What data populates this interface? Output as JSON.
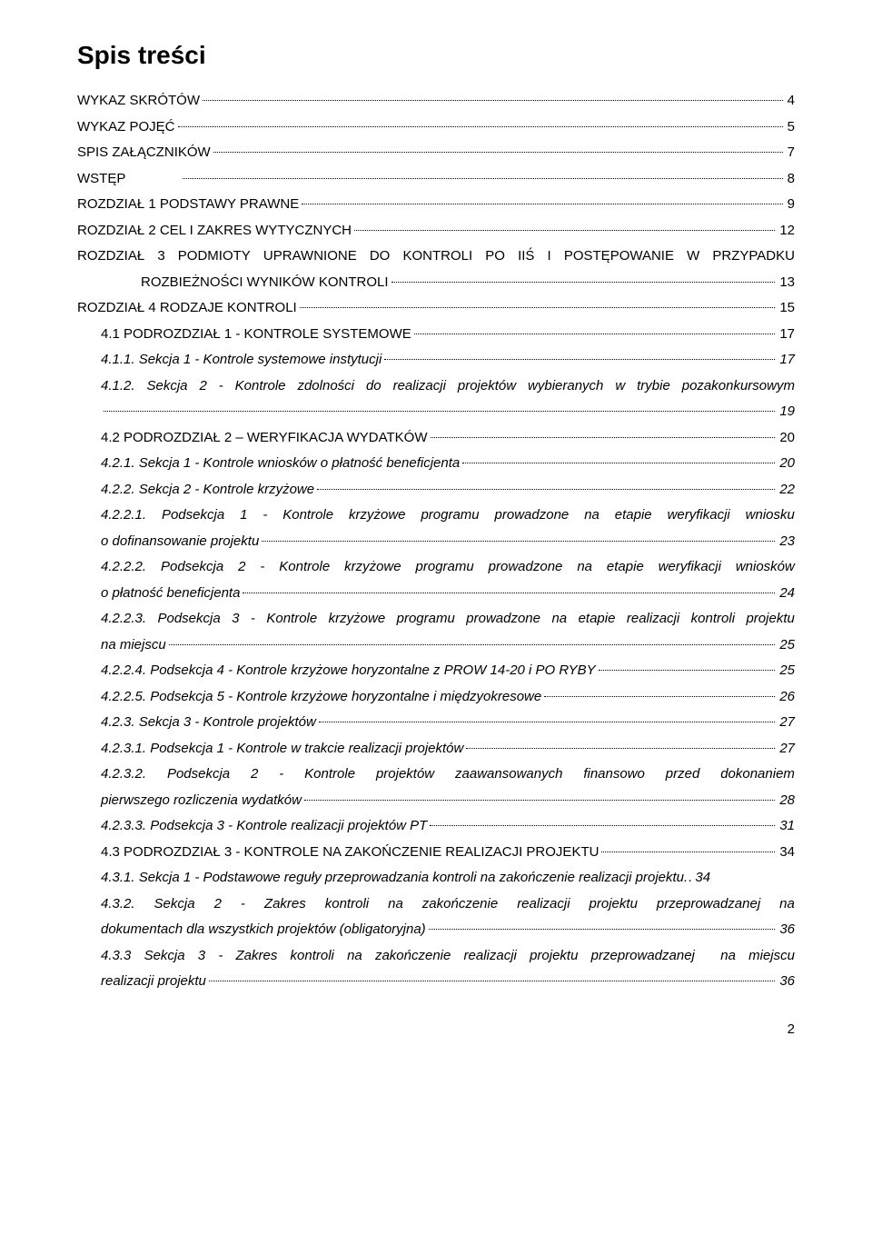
{
  "title": "Spis treści",
  "page_number": "2",
  "entries": [
    {
      "lines": [
        "WYKAZ SKRÓTÓW"
      ],
      "page": "4",
      "style": "lvl1",
      "caps": false
    },
    {
      "lines": [
        "WYKAZ POJĘĆ"
      ],
      "page": "5",
      "style": "lvl1"
    },
    {
      "lines": [
        "SPIS ZAŁĄCZNIKÓW"
      ],
      "page": "7",
      "style": "lvl1"
    },
    {
      "lines": [
        "WSTĘP"
      ],
      "page": "8",
      "style": "lvl1",
      "gap": true
    },
    {
      "lines": [
        "ROZDZIAŁ 1 PODSTAWY PRAWNE"
      ],
      "page": "9",
      "style": "lvl1"
    },
    {
      "lines": [
        "ROZDZIAŁ 2 CEL I ZAKRES WYTYCZNYCH"
      ],
      "page": "12",
      "style": "lvl1"
    },
    {
      "lines": [
        "ROZDZIAŁ 3 PODMIOTY UPRAWNIONE DO KONTROLI PO IIŚ I POSTĘPOWANIE W PRZYPADKU",
        "ROZBIEŻNOŚCI WYNIKÓW KONTROLI"
      ],
      "page": "13",
      "style": "lvl1",
      "indent_cont": true
    },
    {
      "lines": [
        "ROZDZIAŁ 4 RODZAJE KONTROLI"
      ],
      "page": "15",
      "style": "lvl1"
    },
    {
      "lines": [
        "4.1 PODROZDZIAŁ 1 - KONTROLE SYSTEMOWE"
      ],
      "page": "17",
      "style": "lvl2",
      "smallcaps": true
    },
    {
      "lines": [
        "4.1.1. Sekcja 1 - Kontrole systemowe instytucji"
      ],
      "page": "17",
      "style": "lvl3"
    },
    {
      "lines": [
        "4.1.2. Sekcja 2 - Kontrole zdolności do realizacji projektów wybieranych w trybie pozakonkursowym",
        ""
      ],
      "page": "19",
      "style": "lvl3",
      "trail_only": true
    },
    {
      "lines": [
        "4.2 PODROZDZIAŁ 2 – WERYFIKACJA WYDATKÓW"
      ],
      "page": "20",
      "style": "lvl2",
      "smallcaps": true
    },
    {
      "lines": [
        "4.2.1. Sekcja 1 - Kontrole wniosków o płatność beneficjenta"
      ],
      "page": "20",
      "style": "lvl3"
    },
    {
      "lines": [
        "4.2.2. Sekcja 2 - Kontrole krzyżowe"
      ],
      "page": "22",
      "style": "lvl3"
    },
    {
      "lines": [
        "4.2.2.1. Podsekcja 1 - Kontrole krzyżowe programu prowadzone na etapie weryfikacji wniosku",
        "o dofinansowanie projektu"
      ],
      "page": "23",
      "style": "lvl3"
    },
    {
      "lines": [
        "4.2.2.2. Podsekcja 2 - Kontrole krzyżowe programu prowadzone na etapie weryfikacji wniosków",
        "o płatność beneficjenta"
      ],
      "page": "24",
      "style": "lvl3"
    },
    {
      "lines": [
        "4.2.2.3. Podsekcja 3 - Kontrole krzyżowe programu prowadzone na etapie realizacji kontroli projektu",
        "na miejscu"
      ],
      "page": "25",
      "style": "lvl3"
    },
    {
      "lines": [
        "4.2.2.4. Podsekcja 4 - Kontrole krzyżowe horyzontalne z PROW 14-20 i PO RYBY"
      ],
      "page": "25",
      "style": "lvl3"
    },
    {
      "lines": [
        "4.2.2.5. Podsekcja 5 - Kontrole krzyżowe horyzontalne i międzyokresowe"
      ],
      "page": "26",
      "style": "lvl3"
    },
    {
      "lines": [
        "4.2.3. Sekcja 3 - Kontrole projektów"
      ],
      "page": "27",
      "style": "lvl3"
    },
    {
      "lines": [
        "4.2.3.1. Podsekcja 1 - Kontrole w trakcie realizacji projektów"
      ],
      "page": "27",
      "style": "lvl3"
    },
    {
      "lines": [
        "4.2.3.2. Podsekcja 2 - Kontrole projektów zaawansowanych finansowo przed dokonaniem",
        "pierwszego rozliczenia wydatków"
      ],
      "page": "28",
      "style": "lvl3"
    },
    {
      "lines": [
        "4.2.3.3. Podsekcja 3 - Kontrole realizacji projektów PT"
      ],
      "page": "31",
      "style": "lvl3"
    },
    {
      "lines": [
        "4.3 PODROZDZIAŁ 3 - KONTROLE NA ZAKOŃCZENIE REALIZACJI PROJEKTU"
      ],
      "page": "34",
      "style": "lvl2",
      "smallcaps": true
    },
    {
      "lines": [
        "4.3.1. Sekcja 1 - Podstawowe reguły przeprowadzania kontroli na zakończenie realizacji projektu"
      ],
      "page": "34",
      "style": "lvl3",
      "tight": true
    },
    {
      "lines": [
        "4.3.2. Sekcja 2 - Zakres kontroli na zakończenie realizacji projektu przeprowadzanej na",
        "dokumentach dla wszystkich projektów (obligatoryjna)"
      ],
      "page": "36",
      "style": "lvl3"
    },
    {
      "lines": [
        "4.3.3 Sekcja 3 - Zakres kontroli na zakończenie realizacji projektu przeprowadzanej  na miejscu",
        "realizacji projektu"
      ],
      "page": "36",
      "style": "lvl3"
    }
  ]
}
